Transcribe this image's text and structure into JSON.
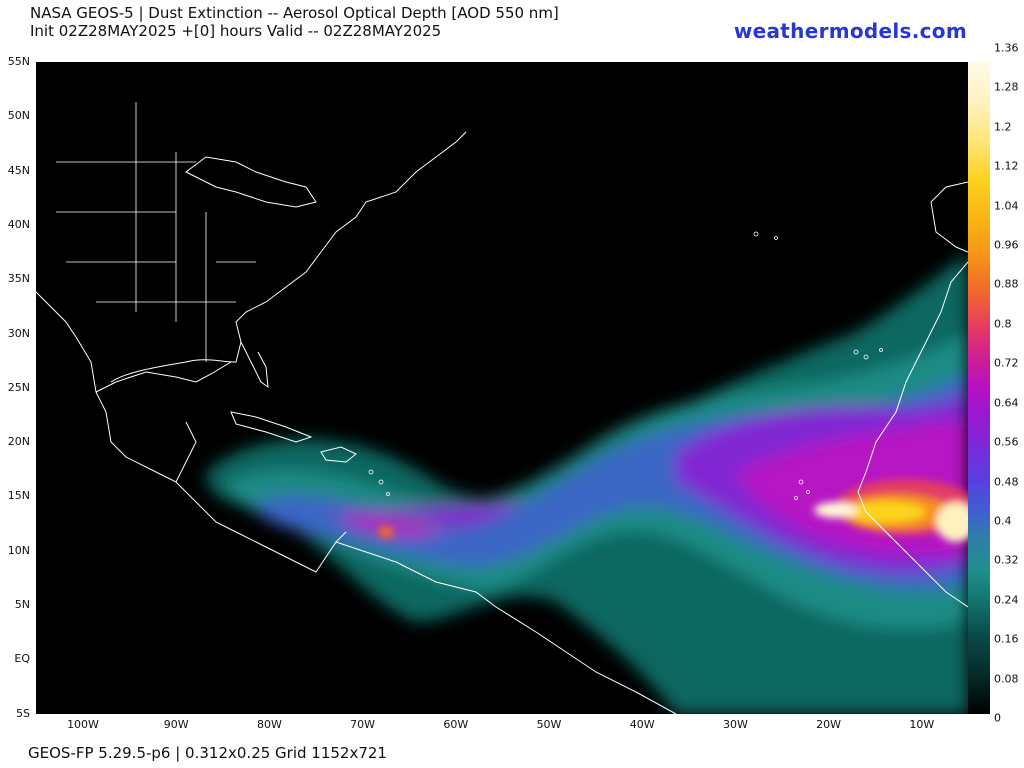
{
  "header": {
    "title_line1": "NASA GEOS-5 | Dust Extinction -- Aerosol Optical Depth [AOD 550 nm]",
    "title_line2": "Init 02Z28MAY2025 +[0] hours Valid -- 02Z28MAY2025",
    "brand": "weathermodels.com",
    "brand_color": "#2a35d8"
  },
  "footer": {
    "text": "GEOS-FP 5.29.5-p6 | 0.312x0.25 Grid 1152x721"
  },
  "map": {
    "lat_labels": [
      "55N",
      "50N",
      "45N",
      "40N",
      "35N",
      "30N",
      "25N",
      "20N",
      "15N",
      "10N",
      "5N",
      "EQ",
      "5S"
    ],
    "lon_labels": [
      "100W",
      "90W",
      "80W",
      "70W",
      "60W",
      "50W",
      "40W",
      "30W",
      "20W",
      "10W"
    ],
    "land_color": "#000000",
    "boundary_color": "#ffffff"
  },
  "colorbar": {
    "labels": [
      "1.36",
      "1.28",
      "1.2",
      "1.12",
      "1.04",
      "0.96",
      "0.88",
      "0.8",
      "0.72",
      "0.64",
      "0.56",
      "0.48",
      "0.4",
      "0.32",
      "0.24",
      "0.16",
      "0.08",
      "0"
    ],
    "min": 0,
    "max": 1.36
  }
}
